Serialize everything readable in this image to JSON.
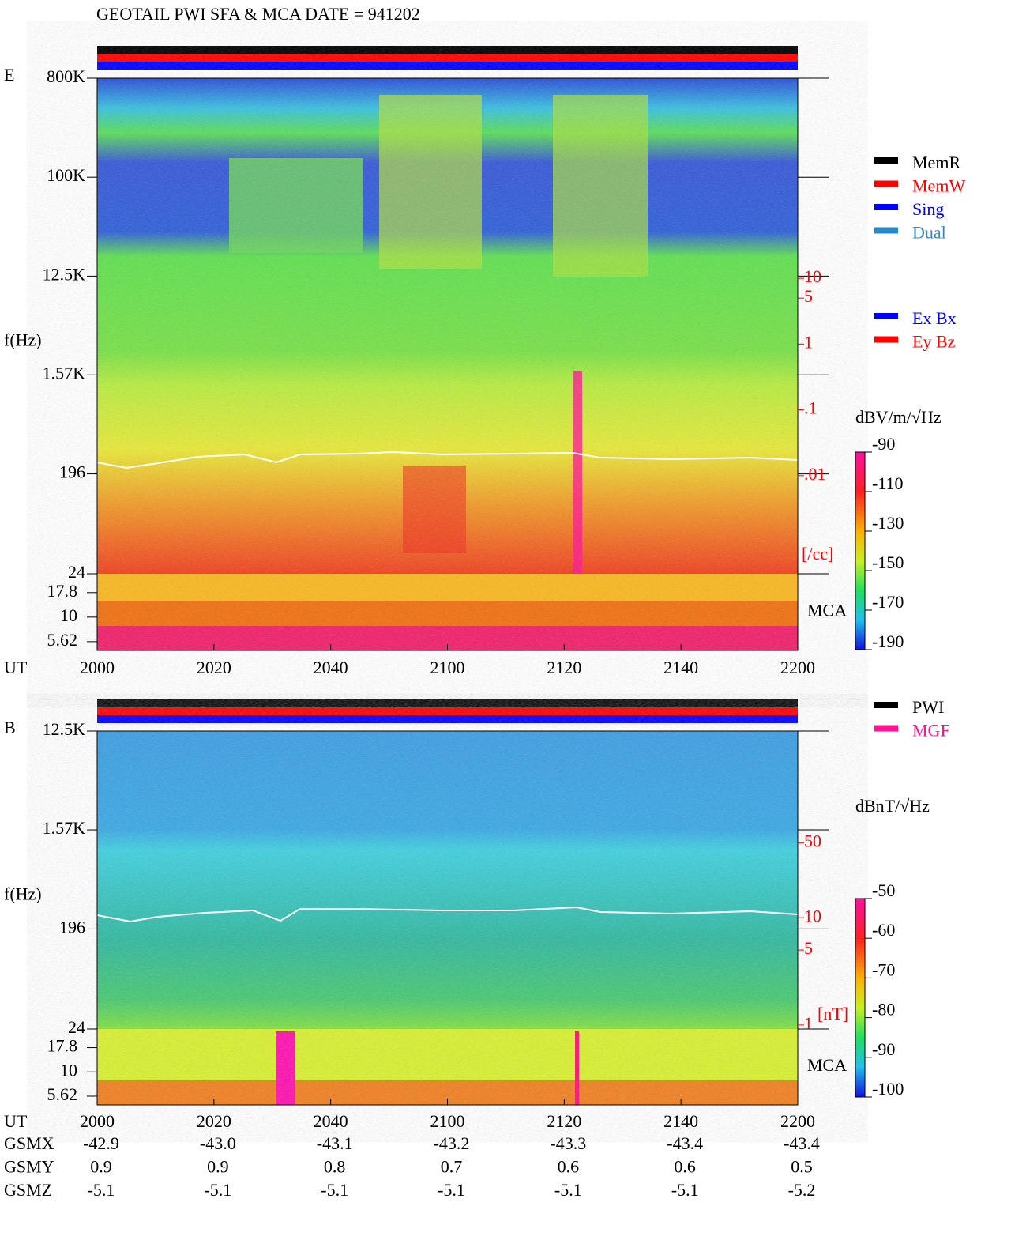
{
  "title": "GEOTAIL  PWI SFA & MCA   DATE = 941202",
  "panels": [
    {
      "label": "E",
      "ylabel": "f(Hz)",
      "yticks": [
        {
          "value": 800000,
          "label": "800K"
        },
        {
          "value": 100000,
          "label": "100K"
        },
        {
          "value": 12500,
          "label": "12.5K"
        },
        {
          "value": 1570,
          "label": "1.57K"
        },
        196,
        24
      ],
      "ylim": [
        800000,
        24
      ],
      "log": true,
      "mca_label": "MCA",
      "mca_ticks": [
        17.8,
        10,
        5.62
      ],
      "mca_lim": [
        27.7,
        4.57
      ],
      "right_ticks": [
        10,
        5,
        1,
        {
          "value": 0.1,
          "label": ".1"
        },
        {
          "value": 0.01,
          "label": ".01"
        }
      ],
      "right_lim": [
        11000,
        2.2e-05
      ],
      "right_unit": "[/cc]",
      "xlabel": "UT",
      "xticks": [
        "2000",
        "2020",
        "2040",
        "2100",
        "2120",
        "2140",
        "2200"
      ],
      "legends": [
        [
          {
            "name": "MemR",
            "color": "#000000"
          },
          {
            "name": "MemW",
            "color": "#ff0000"
          },
          {
            "name": "Sing",
            "color": "#0000ff"
          },
          {
            "name": "Dual",
            "color": "#2a8ac8"
          }
        ],
        [
          {
            "name": "Ex Bx",
            "color": "#0000ff"
          },
          {
            "name": "Ey Bz",
            "color": "#ff0000"
          }
        ]
      ],
      "colorbar": {
        "unit": "dBV/m/√Hz",
        "ticks": [
          -90,
          -110,
          -130,
          -150,
          -170,
          -190
        ],
        "lim": [
          -90,
          -190
        ]
      }
    },
    {
      "label": "B",
      "ylabel": "f(Hz)",
      "yticks": [
        {
          "value": 12500,
          "label": "12.5K"
        },
        {
          "value": 1570,
          "label": "1.57K"
        },
        196,
        24
      ],
      "ylim": [
        12500,
        24
      ],
      "log": true,
      "mca_label": "MCA",
      "mca_ticks": [
        17.8,
        10,
        5.62
      ],
      "mca_lim": [
        27.7,
        4.57
      ],
      "right_ticks": [
        50,
        10,
        5,
        1
      ],
      "right_lim": [
        550,
        0.18
      ],
      "right_unit": "[nT]",
      "xlabel": "UT",
      "xticks": [
        "2000",
        "2020",
        "2040",
        "2100",
        "2120",
        "2140",
        "2200"
      ],
      "legends": [
        [
          {
            "name": "PWI",
            "color": "#000000"
          },
          {
            "name": "MGF",
            "color": "#ff1493"
          }
        ]
      ],
      "colorbar": {
        "unit": "dBnT/√Hz",
        "ticks": [
          -50,
          -60,
          -70,
          -80,
          -90,
          -100
        ],
        "lim": [
          -50,
          -100
        ]
      }
    }
  ],
  "orbit": {
    "rows": [
      {
        "label": "GSMX",
        "values": [
          "-42.9",
          "-43.0",
          "-43.1",
          "-43.2",
          "-43.3",
          "-43.4",
          "-43.4"
        ]
      },
      {
        "label": "GSMY",
        "values": [
          "0.9",
          "0.9",
          "0.8",
          "0.7",
          "0.6",
          "0.6",
          "0.5"
        ]
      },
      {
        "label": "GSMZ",
        "values": [
          "-5.1",
          "-5.1",
          "-5.1",
          "-5.1",
          "-5.1",
          "-5.1",
          "-5.2"
        ]
      }
    ]
  }
}
